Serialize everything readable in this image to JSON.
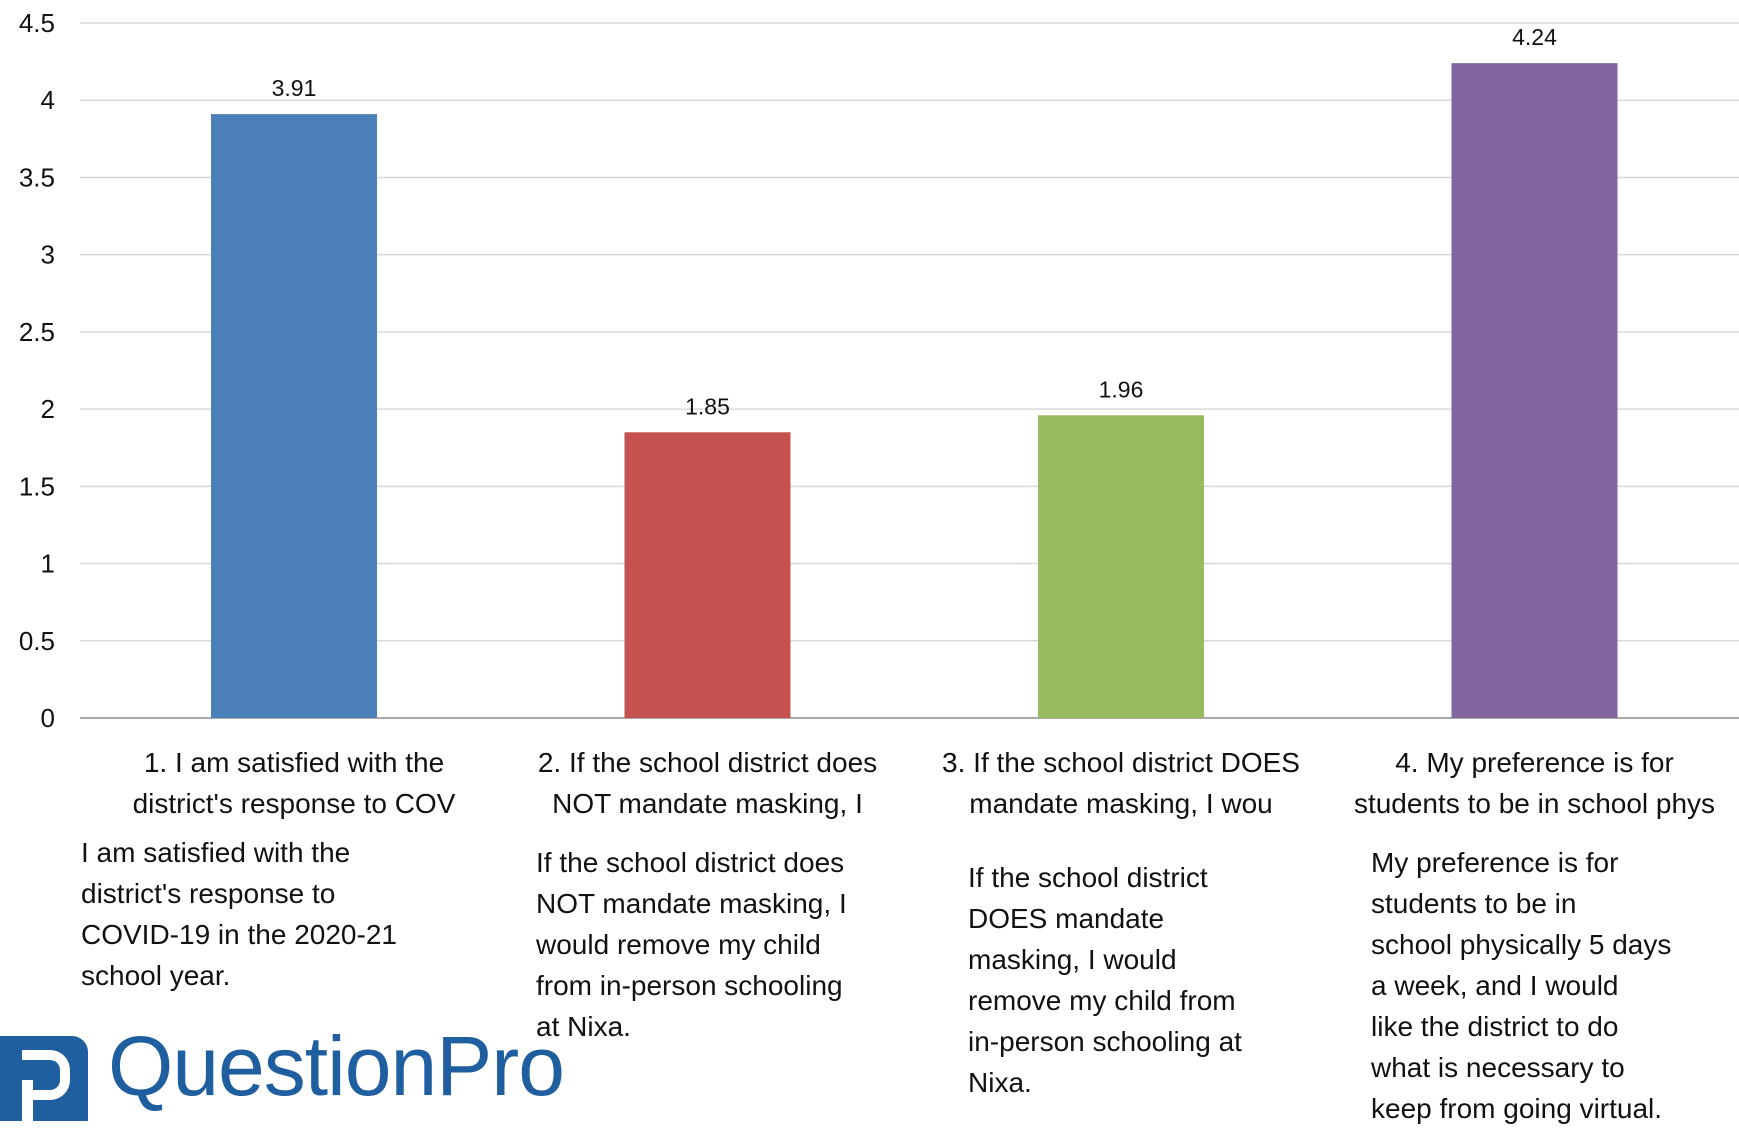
{
  "chart_data": {
    "type": "bar",
    "categories": [
      "1. I am satisfied with the district's response to COV",
      "2. If the school district does NOT mandate masking, I",
      "3. If the school district DOES mandate masking, I wou",
      "4. My preference is for students to be in school phys"
    ],
    "category_lines": [
      [
        "1. I am satisfied with the",
        "district's response to COV"
      ],
      [
        "2. If the school district does",
        "NOT mandate masking, I"
      ],
      [
        "3. If the school district DOES",
        "mandate masking, I wou"
      ],
      [
        "4. My preference is for",
        "students to be in school phys"
      ]
    ],
    "values": [
      3.91,
      1.85,
      1.96,
      4.24
    ],
    "data_labels": [
      "3.91",
      "1.85",
      "1.96",
      "4.24"
    ],
    "colors": [
      "#4a7fb8",
      "#c65250",
      "#98bb5f",
      "#8065a0"
    ],
    "ylim": [
      0,
      4.5
    ],
    "yticks": [
      "0",
      "0.5",
      "1",
      "1.5",
      "2",
      "2.5",
      "3",
      "3.5",
      "4",
      "4.5"
    ],
    "grid": true,
    "title": "",
    "xlabel": "",
    "ylabel": ""
  },
  "descriptions": [
    [
      "I am satisfied with the",
      "district's response to",
      "COVID-19 in the 2020-21",
      "school year."
    ],
    [
      "If the school district does",
      "NOT mandate masking, I",
      "would remove my child",
      "from in-person schooling",
      "at Nixa."
    ],
    [
      "If the school district",
      "DOES mandate",
      "masking, I would",
      "remove my child from",
      "in-person schooling at",
      "Nixa."
    ],
    [
      "My preference is for",
      "students to be in",
      "school physically 5 days",
      "a week, and I would",
      "like the district to do",
      "what is necessary to",
      "keep from going virtual."
    ]
  ],
  "logo": {
    "text": "QuestionPro",
    "color": "#1f5fa0"
  }
}
